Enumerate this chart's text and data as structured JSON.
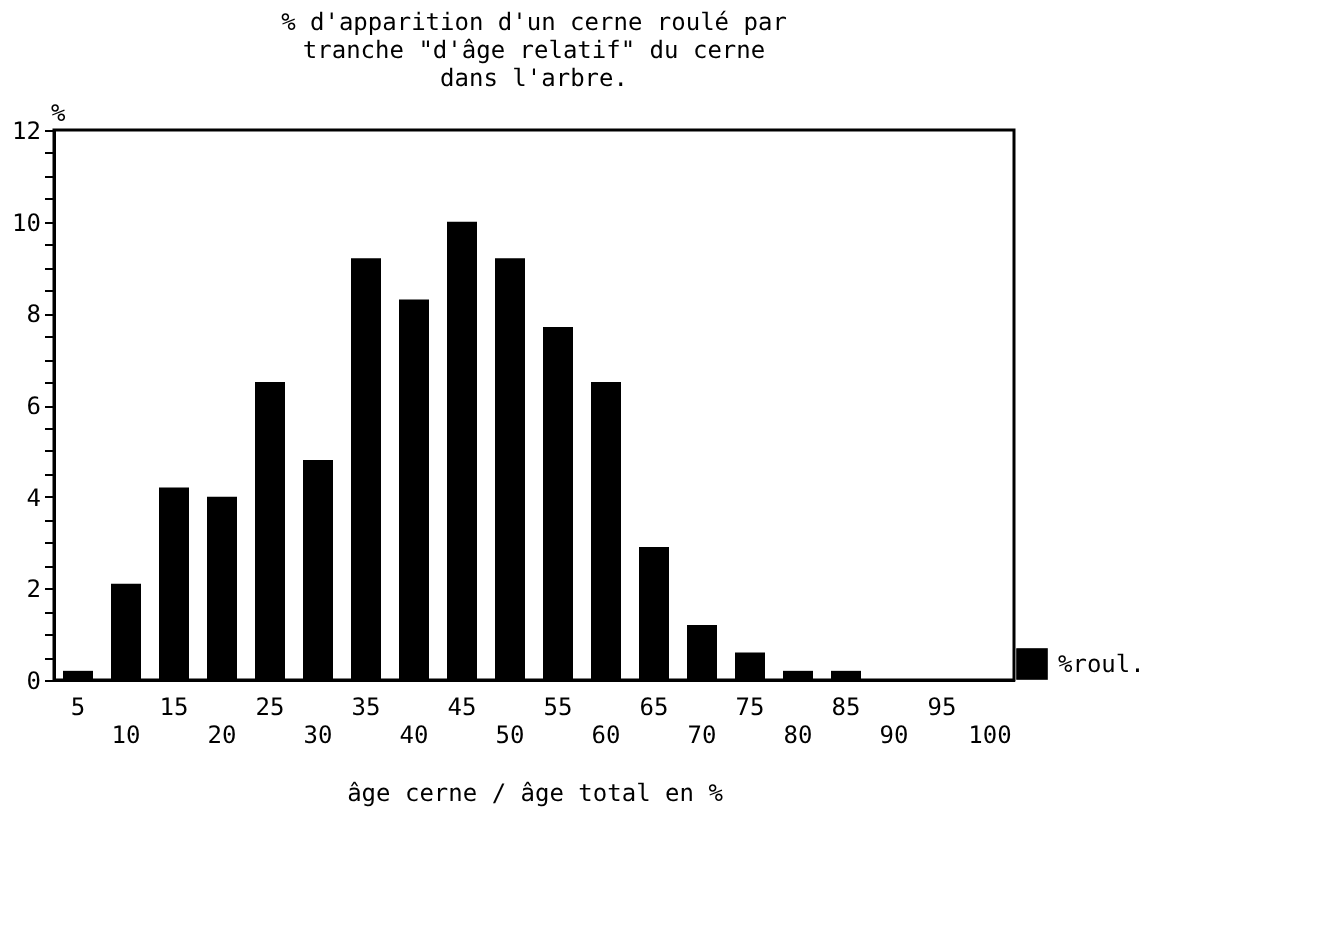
{
  "chart_data": {
    "type": "bar",
    "title": [
      "% d'apparition d'un cerne roulé par",
      "tranche \"d'âge relatif\" du cerne",
      "dans l'arbre."
    ],
    "xlabel": "âge cerne / âge total en %",
    "ylabel": "%",
    "categories": [
      "5",
      "10",
      "15",
      "20",
      "25",
      "30",
      "35",
      "40",
      "45",
      "50",
      "55",
      "60",
      "65",
      "70",
      "75",
      "80",
      "85",
      "90",
      "95",
      "100"
    ],
    "series": [
      {
        "name": "%roul.",
        "color": "#000000",
        "values": [
          0.2,
          2.1,
          4.2,
          4.0,
          6.5,
          4.8,
          9.2,
          8.3,
          10.0,
          9.2,
          7.7,
          6.5,
          2.9,
          1.2,
          0.6,
          0.2,
          0.2,
          0,
          0,
          0
        ]
      }
    ],
    "ylim": [
      0,
      12
    ],
    "yticks": [
      0,
      {
        "value": 0.5,
        "label": null
      },
      {
        "value": 1,
        "label": null
      },
      {
        "value": 1.5,
        "label": null
      },
      2,
      {
        "value": 2.5,
        "label": null
      },
      {
        "value": 3,
        "label": null
      },
      {
        "value": 3.5,
        "label": null
      },
      4,
      {
        "value": 4.5,
        "label": null
      },
      {
        "value": 5,
        "label": null
      },
      {
        "value": 5.5,
        "label": null
      },
      6,
      {
        "value": 6.5,
        "label": null
      },
      {
        "value": 7,
        "label": null
      },
      {
        "value": 7.5,
        "label": null
      },
      8,
      {
        "value": 8.5,
        "label": null
      },
      {
        "value": 9,
        "label": null
      },
      {
        "value": 9.5,
        "label": null
      },
      10,
      {
        "value": 10.5,
        "label": null
      },
      {
        "value": 11,
        "label": null
      },
      {
        "value": 11.5,
        "label": null
      },
      12
    ],
    "grid": false,
    "legend": "bottom right"
  }
}
